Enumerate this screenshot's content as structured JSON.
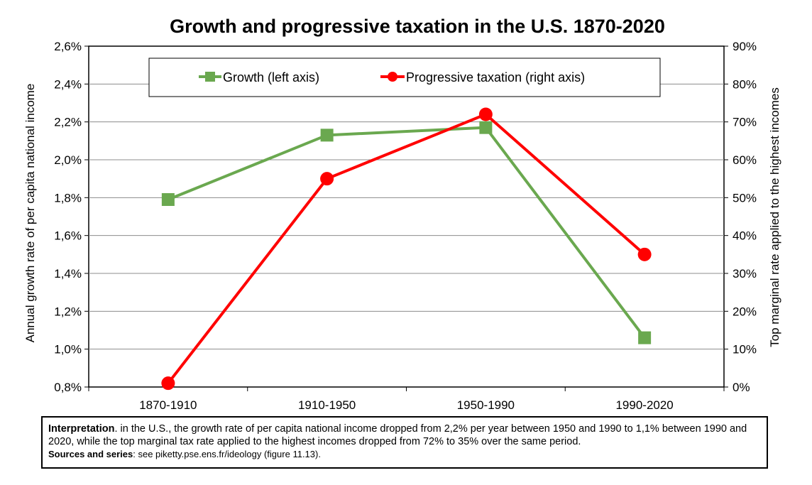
{
  "chart_data": {
    "type": "line",
    "title": "Growth and progressive taxation in the U.S. 1870-2020",
    "categories": [
      "1870-1910",
      "1910-1950",
      "1950-1990",
      "1990-2020"
    ],
    "series": [
      {
        "name": "Growth (left axis)",
        "axis": "left",
        "color": "#6aa84f",
        "marker": "square",
        "values": [
          1.79,
          2.13,
          2.17,
          1.06
        ]
      },
      {
        "name": "Progressive taxation (right axis)",
        "axis": "right",
        "color": "#ff0000",
        "marker": "circle",
        "values": [
          1,
          55,
          72,
          35
        ]
      }
    ],
    "ylabel_left": "Annual growth rate of per capita national income",
    "ylabel_right": "Top marginal rate applied to the highest incomes",
    "ylim_left": [
      0.8,
      2.6
    ],
    "ylim_right": [
      0,
      90
    ],
    "left_ticks": [
      "0,8%",
      "1,0%",
      "1,2%",
      "1,4%",
      "1,6%",
      "1,8%",
      "2,0%",
      "2,2%",
      "2,4%",
      "2,6%"
    ],
    "right_ticks": [
      "0%",
      "10%",
      "20%",
      "30%",
      "40%",
      "50%",
      "60%",
      "70%",
      "80%",
      "90%"
    ],
    "grid": true,
    "legend_position": "top"
  },
  "note": {
    "interp_label": "Interpretation",
    "interp_text": ". in the U.S., the growth rate of per capita national income dropped from 2,2% per year between 1950 and 1990 to 1,1% between 1990 and 2020, while the top marginal tax rate applied to the highest incomes dropped from 72% to 35% over the same period.",
    "sources_label": "Sources and series",
    "sources_text": ": see piketty.pse.ens.fr/ideology (figure 11.13)."
  }
}
